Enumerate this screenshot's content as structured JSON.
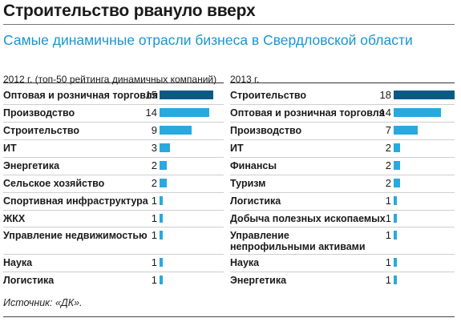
{
  "title": "Строительство рвануло вверх",
  "subtitle": "Самые динамичные отрасли бизнеса в Свердловской области",
  "source": "Источник: «ДК».",
  "colors": {
    "dark_bar": "#0a5a85",
    "light_bar": "#29a9de",
    "subtitle": "#1b95cf"
  },
  "chart_data": [
    {
      "type": "bar",
      "orientation": "horizontal",
      "title": "2012 г. (топ-50 рейтинга динамичных компаний)",
      "categories": [
        "Оптовая и розничная торговля",
        "Производство",
        "Строительство",
        "ИТ",
        "Энергетика",
        "Сельское хозяйство",
        "Спортивная инфраструктура",
        "ЖКХ",
        "Управление недвижимостью",
        "Наука",
        "Логистика"
      ],
      "values": [
        15,
        14,
        9,
        3,
        2,
        2,
        1,
        1,
        1,
        1,
        1
      ],
      "highlight_index": 0
    },
    {
      "type": "bar",
      "orientation": "horizontal",
      "title": "2013 г.",
      "categories": [
        "Строительство",
        "Оптовая и розничная торговля",
        "Производство",
        "ИТ",
        "Финансы",
        "Туризм",
        "Логистика",
        "Добыча полезных ископаемых",
        "Управление непрофильными активами",
        "Наука",
        "Энергетика"
      ],
      "values": [
        18,
        14,
        7,
        2,
        2,
        2,
        1,
        1,
        1,
        1,
        1
      ],
      "highlight_index": 0
    }
  ]
}
